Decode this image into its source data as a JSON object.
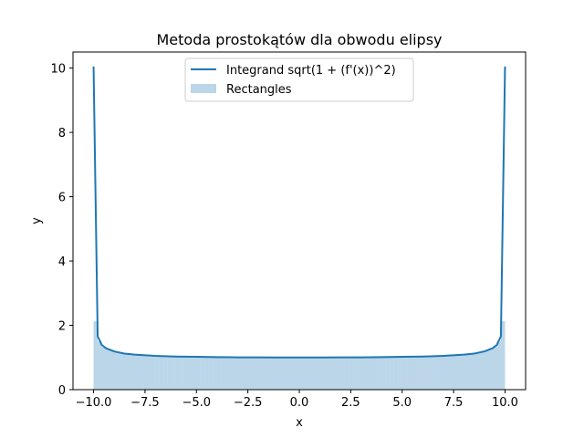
{
  "chart_data": {
    "type": "line",
    "title": "Metoda prostokątów dla obwodu elipsy",
    "xlabel": "x",
    "ylabel": "y",
    "xlim": [
      -11.0,
      11.0
    ],
    "ylim": [
      0,
      10.5
    ],
    "xticks": [
      -10,
      -7.5,
      -5,
      -2.5,
      0,
      2.5,
      5,
      7.5,
      10
    ],
    "xtick_labels": [
      "−10.0",
      "−7.5",
      "−5.0",
      "−2.5",
      "0.0",
      "2.5",
      "5.0",
      "7.5",
      "10.0"
    ],
    "yticks": [
      0,
      2,
      4,
      6,
      8,
      10
    ],
    "ytick_labels": [
      "0",
      "2",
      "4",
      "6",
      "8",
      "10"
    ],
    "grid": false,
    "legend_position": "upper center",
    "series": [
      {
        "name": "Integrand sqrt(1 + (f'(x))^2)",
        "kind": "line",
        "color": "#1f77b4",
        "x": [
          -10.0,
          -9.8,
          -9.6,
          -9.4,
          -9.0,
          -8.5,
          -8.0,
          -7.0,
          -6.0,
          -5.0,
          -4.0,
          -3.0,
          -2.0,
          -1.0,
          0.0,
          1.0,
          2.0,
          3.0,
          4.0,
          5.0,
          6.0,
          7.0,
          8.0,
          8.5,
          9.0,
          9.4,
          9.6,
          9.8,
          10.0
        ],
        "y": [
          10.05,
          1.66,
          1.39,
          1.29,
          1.19,
          1.12,
          1.09,
          1.05,
          1.03,
          1.02,
          1.01,
          1.005,
          1.003,
          1.001,
          1.0,
          1.001,
          1.003,
          1.005,
          1.01,
          1.02,
          1.03,
          1.05,
          1.09,
          1.12,
          1.19,
          1.29,
          1.39,
          1.66,
          10.05
        ]
      },
      {
        "name": "Rectangles",
        "kind": "rectangles",
        "color": "#1f77b4",
        "opacity": 0.3,
        "bar_width": 0.2,
        "x_centers": [
          -9.9,
          -9.7,
          -9.5,
          -9.3,
          -9.1,
          -8.9,
          -8.7,
          -8.5,
          -8.3,
          -8.1,
          -7.9,
          -7.7,
          -7.5,
          -7.3,
          -7.1,
          -6.9,
          -6.7,
          -6.5,
          -6.3,
          -6.1,
          -5.9,
          -5.7,
          -5.5,
          -5.3,
          -5.1,
          -4.9,
          -4.7,
          -4.5,
          -4.3,
          -4.1,
          -3.9,
          -3.7,
          -3.5,
          -3.3,
          -3.1,
          -2.9,
          -2.7,
          -2.5,
          -2.3,
          -2.1,
          -1.9,
          -1.7,
          -1.5,
          -1.3,
          -1.1,
          -0.9,
          -0.7,
          -0.5,
          -0.3,
          -0.1,
          0.1,
          0.3,
          0.5,
          0.7,
          0.9,
          1.1,
          1.3,
          1.5,
          1.7,
          1.9,
          2.1,
          2.3,
          2.5,
          2.7,
          2.9,
          3.1,
          3.3,
          3.5,
          3.7,
          3.9,
          4.1,
          4.3,
          4.5,
          4.7,
          4.9,
          5.1,
          5.3,
          5.5,
          5.7,
          5.9,
          6.1,
          6.3,
          6.5,
          6.7,
          6.9,
          7.1,
          7.3,
          7.5,
          7.7,
          7.9,
          8.1,
          8.3,
          8.5,
          8.7,
          8.9,
          9.1,
          9.3,
          9.5,
          9.7,
          9.9
        ],
        "values": [
          2.13,
          1.5,
          1.33,
          1.26,
          1.22,
          1.18,
          1.16,
          1.14,
          1.13,
          1.11,
          1.1,
          1.09,
          1.08,
          1.07,
          1.07,
          1.06,
          1.06,
          1.05,
          1.05,
          1.04,
          1.04,
          1.04,
          1.03,
          1.03,
          1.03,
          1.03,
          1.02,
          1.02,
          1.02,
          1.02,
          1.02,
          1.01,
          1.01,
          1.01,
          1.01,
          1.01,
          1.01,
          1.01,
          1.01,
          1.01,
          1.0,
          1.0,
          1.0,
          1.0,
          1.0,
          1.0,
          1.0,
          1.0,
          1.0,
          1.0,
          1.0,
          1.0,
          1.0,
          1.0,
          1.0,
          1.0,
          1.0,
          1.0,
          1.0,
          1.0,
          1.01,
          1.01,
          1.01,
          1.01,
          1.01,
          1.01,
          1.01,
          1.01,
          1.01,
          1.02,
          1.02,
          1.02,
          1.02,
          1.02,
          1.03,
          1.03,
          1.03,
          1.03,
          1.04,
          1.04,
          1.04,
          1.05,
          1.05,
          1.06,
          1.06,
          1.07,
          1.07,
          1.08,
          1.09,
          1.1,
          1.11,
          1.13,
          1.14,
          1.16,
          1.18,
          1.22,
          1.26,
          1.33,
          1.5,
          2.13
        ]
      }
    ]
  }
}
